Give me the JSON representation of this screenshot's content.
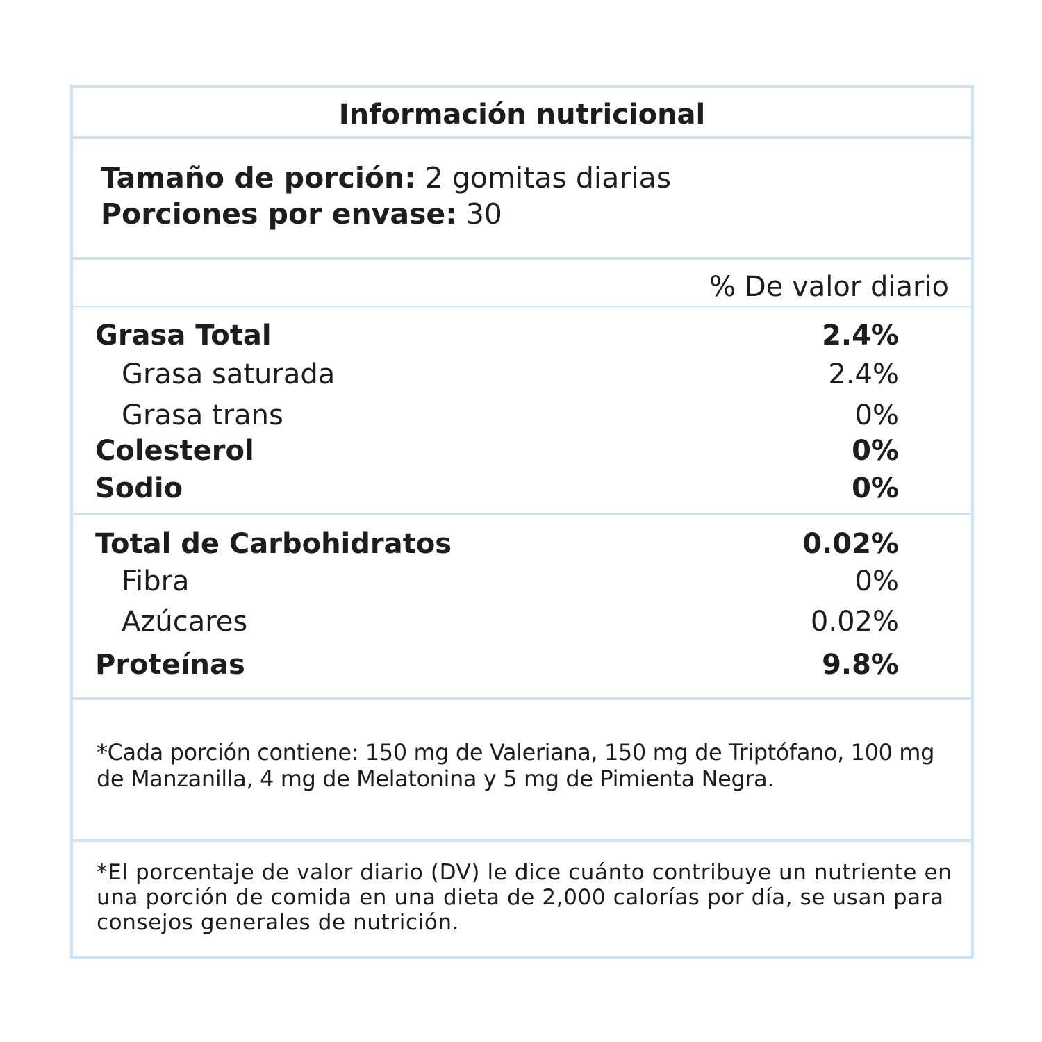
{
  "title": "Información nutricional",
  "serving": {
    "size_label": "Tamaño de porción:",
    "size_value": "2 gomitas diarias",
    "per_container_label": "Porciones por envase:",
    "per_container_value": "30"
  },
  "dv_header": "% De valor diario",
  "nutrients_group1": [
    {
      "label": "Grasa Total",
      "value": "2.4%"
    },
    {
      "label": "Grasa saturada",
      "value": "2.4%"
    },
    {
      "label": "Grasa trans",
      "value": "0%"
    },
    {
      "label": "Colesterol",
      "value": "0%"
    },
    {
      "label": "Sodio",
      "value": "0%"
    }
  ],
  "nutrients_group2": [
    {
      "label": "Total de Carbohidratos",
      "value": "0.02%"
    },
    {
      "label": "Fibra",
      "value": "0%"
    },
    {
      "label": "Azúcares",
      "value": "0.02%"
    },
    {
      "label": "Proteínas",
      "value": "9.8%"
    }
  ],
  "portion_note": "*Cada porción contiene: 150 mg de Valeriana, 150 mg de Triptófano, 100 mg de Manzanilla, 4 mg de Melatonina y 5 mg de Pimienta Negra.",
  "dv_note": "*El porcentaje de valor diario (DV) le dice cuánto contribuye un nutriente en una porción de comida en una dieta de 2,000 calorías por día, se usan para consejos generales de nutrición.",
  "colors": {
    "border": "#cfe2f4",
    "text": "#1d1d1b"
  }
}
